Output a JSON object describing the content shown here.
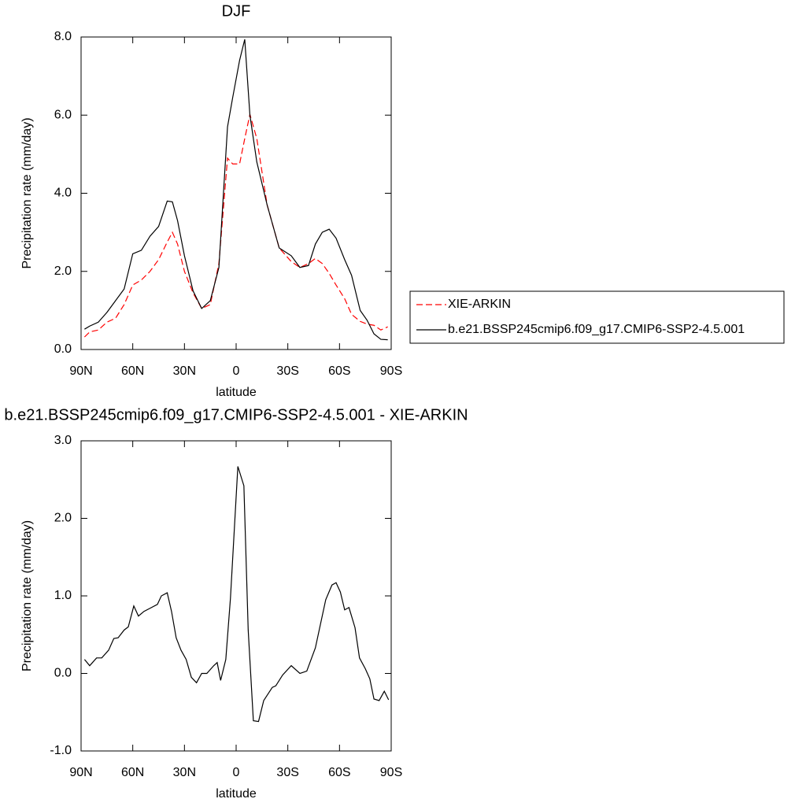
{
  "chart_data": [
    {
      "type": "line",
      "title": "DJF",
      "x_label": "latitude",
      "y_label": "Precipitation rate (mm/day)",
      "xlim": [
        90,
        -90
      ],
      "ylim": [
        0,
        8
      ],
      "xticks": [
        {
          "value": 90,
          "label": "90N"
        },
        {
          "value": 60,
          "label": "60N"
        },
        {
          "value": 30,
          "label": "30N"
        },
        0,
        {
          "value": -30,
          "label": "30S"
        },
        {
          "value": -60,
          "label": "60S"
        },
        {
          "value": -90,
          "label": "90S"
        }
      ],
      "yticks": [
        {
          "value": 0,
          "label": "0.0"
        },
        {
          "value": 2,
          "label": "2.0"
        },
        {
          "value": 4,
          "label": "4.0"
        },
        {
          "value": 6,
          "label": "6.0"
        },
        {
          "value": 8,
          "label": "8.0"
        }
      ],
      "legend": "right",
      "x": [
        88,
        85,
        80,
        75,
        70,
        65,
        60,
        55,
        50,
        45,
        40,
        37,
        34,
        30,
        25,
        20,
        15,
        10,
        5,
        2,
        -2,
        -5,
        -8,
        -12,
        -18,
        -25,
        -32,
        -37,
        -42,
        -46,
        -50,
        -54,
        -58,
        -63,
        -67,
        -72,
        -76,
        -80,
        -84,
        -88
      ],
      "series": [
        {
          "name": "XIE-ARKIN",
          "color": "#ff0000",
          "dashed": true,
          "values": [
            0.32,
            0.45,
            0.5,
            0.7,
            0.8,
            1.15,
            1.65,
            1.78,
            2.0,
            2.3,
            2.75,
            3.0,
            2.7,
            2.0,
            1.45,
            1.05,
            1.15,
            2.2,
            4.9,
            4.75,
            4.75,
            5.4,
            6.02,
            5.4,
            3.7,
            2.6,
            2.25,
            2.1,
            2.2,
            2.33,
            2.2,
            1.95,
            1.65,
            1.3,
            0.9,
            0.72,
            0.65,
            0.62,
            0.5,
            0.58
          ]
        },
        {
          "name": "b.e21.BSSP245cmip6.f09_g17.CMIP6-SSP2-4.5.001",
          "color": "#000000",
          "dashed": false,
          "values": [
            0.52,
            0.6,
            0.7,
            0.95,
            1.25,
            1.55,
            2.45,
            2.54,
            2.9,
            3.15,
            3.8,
            3.78,
            3.3,
            2.4,
            1.5,
            1.05,
            1.25,
            2.1,
            5.7,
            6.45,
            7.4,
            7.94,
            6.0,
            4.8,
            3.7,
            2.6,
            2.4,
            2.1,
            2.15,
            2.7,
            3.0,
            3.08,
            2.85,
            2.3,
            1.9,
            1.0,
            0.75,
            0.4,
            0.26,
            0.25
          ]
        }
      ]
    },
    {
      "type": "line",
      "title": "b.e21.BSSP245cmip6.f09_g17.CMIP6-SSP2-4.5.001 - XIE-ARKIN",
      "x_label": "latitude",
      "y_label": "Precipitation rate (mm/day)",
      "xlim": [
        90,
        -90
      ],
      "ylim": [
        -1,
        3
      ],
      "xticks": [
        {
          "value": 90,
          "label": "90N"
        },
        {
          "value": 60,
          "label": "60N"
        },
        {
          "value": 30,
          "label": "30N"
        },
        0,
        {
          "value": -30,
          "label": "30S"
        },
        {
          "value": -60,
          "label": "60S"
        },
        {
          "value": -90,
          "label": "90S"
        }
      ],
      "yticks": [
        {
          "value": -1,
          "label": "-1.0"
        },
        {
          "value": 0,
          "label": "0.0"
        },
        {
          "value": 1,
          "label": "1.0"
        },
        {
          "value": 2,
          "label": "2.0"
        },
        {
          "value": 3,
          "label": "3.0"
        }
      ],
      "x": [
        88,
        85,
        81,
        78,
        74,
        71,
        68.5,
        65,
        62.6,
        59.4,
        56.7,
        53.5,
        50,
        45.7,
        43.4,
        40,
        37.5,
        34.8,
        32,
        29,
        26,
        23,
        20,
        17,
        13,
        11,
        9,
        6,
        3.3,
        -1,
        -4.5,
        -7,
        -10,
        -13,
        -16,
        -21,
        -23,
        -27,
        -32,
        -37,
        -41,
        -46,
        -52,
        -55.6,
        -58,
        -60.5,
        -63,
        -65.5,
        -69,
        -71.6,
        -75,
        -77.6,
        -80,
        -83,
        -86,
        -88.5
      ],
      "series": [
        {
          "name": null,
          "color": "#000000",
          "dashed": false,
          "values": [
            0.18,
            0.1,
            0.2,
            0.2,
            0.3,
            0.45,
            0.46,
            0.56,
            0.6,
            0.87,
            0.74,
            0.8,
            0.84,
            0.89,
            1.0,
            1.04,
            0.8,
            0.46,
            0.3,
            0.18,
            -0.05,
            -0.12,
            0,
            0,
            0.1,
            0.14,
            -0.09,
            0.18,
            0.97,
            2.67,
            2.42,
            0.56,
            -0.61,
            -0.62,
            -0.35,
            -0.18,
            -0.16,
            -0.02,
            0.1,
            0,
            0.03,
            0.33,
            0.95,
            1.14,
            1.17,
            1.05,
            0.82,
            0.85,
            0.59,
            0.2,
            0.06,
            -0.07,
            -0.33,
            -0.35,
            -0.23,
            -0.34
          ]
        }
      ]
    }
  ]
}
